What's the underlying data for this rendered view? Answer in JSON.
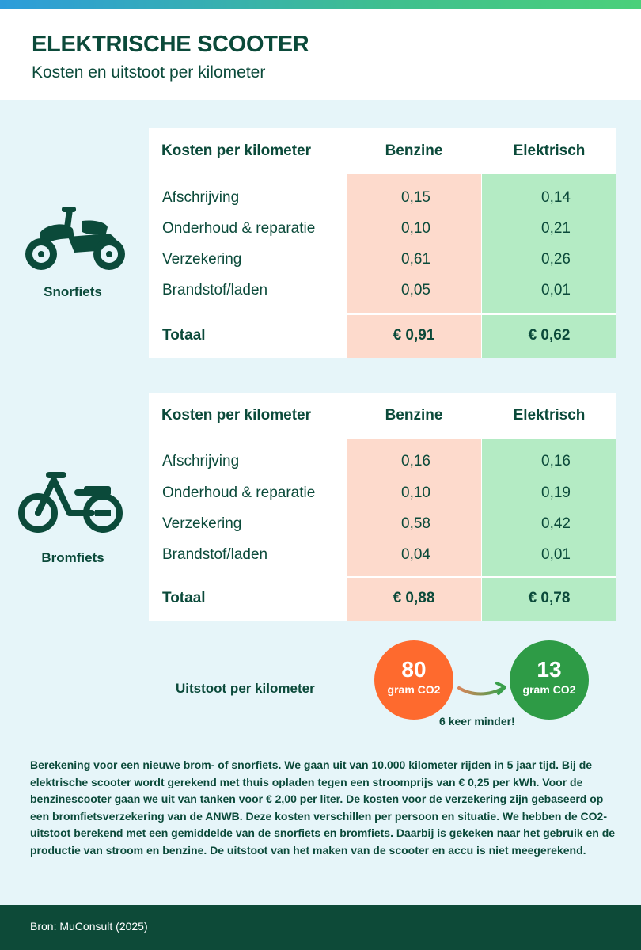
{
  "header": {
    "title": "ELEKTRISCHE SCOOTER",
    "subtitle": "Kosten en uitstoot per kilometer"
  },
  "colors": {
    "dark_green": "#0b4a3a",
    "benzine_bg": "#fddacc",
    "elektrisch_bg": "#b4ebc4",
    "orange": "#fe6a2e",
    "green": "#2e9b46",
    "page_bg": "#e6f5f9"
  },
  "tables": [
    {
      "vehicle": "Snorfiets",
      "icon": "scooter-icon",
      "header": {
        "label": "Kosten per kilometer",
        "benzine": "Benzine",
        "elektrisch": "Elektrisch"
      },
      "rows": [
        {
          "label": "Afschrijving",
          "benzine": "0,15",
          "elektrisch": "0,14"
        },
        {
          "label": "Onderhoud & reparatie",
          "benzine": "0,10",
          "elektrisch": "0,21"
        },
        {
          "label": "Verzekering",
          "benzine": "0,61",
          "elektrisch": "0,26"
        },
        {
          "label": "Brandstof/laden",
          "benzine": "0,05",
          "elektrisch": "0,01"
        }
      ],
      "total": {
        "label": "Totaal",
        "benzine": "€ 0,91",
        "elektrisch": "€ 0,62"
      }
    },
    {
      "vehicle": "Bromfiets",
      "icon": "moped-icon",
      "header": {
        "label": "Kosten per kilometer",
        "benzine": "Benzine",
        "elektrisch": "Elektrisch"
      },
      "rows": [
        {
          "label": "Afschrijving",
          "benzine": "0,16",
          "elektrisch": "0,16"
        },
        {
          "label": "Onderhoud & reparatie",
          "benzine": "0,10",
          "elektrisch": "0,19"
        },
        {
          "label": "Verzekering",
          "benzine": "0,58",
          "elektrisch": "0,42"
        },
        {
          "label": "Brandstof/laden",
          "benzine": "0,04",
          "elektrisch": "0,01"
        }
      ],
      "total": {
        "label": "Totaal",
        "benzine": "€ 0,88",
        "elektrisch": "€ 0,78"
      }
    }
  ],
  "emissions": {
    "label": "Uitstoot per kilometer",
    "benzine_value": "80",
    "benzine_unit": "gram CO2",
    "elektrisch_value": "13",
    "elektrisch_unit": "gram CO2",
    "comparison": "6 keer minder!"
  },
  "note": "Berekening voor een nieuwe brom- of snorfiets. We gaan uit van 10.000 kilometer rijden in 5 jaar tijd. Bij de elektrische scooter wordt gerekend met thuis opladen tegen een stroomprijs van € 0,25 per kWh. Voor de benzinescooter gaan we uit van tanken voor € 2,00 per liter. De kosten voor de verzekering zijn gebaseerd op een bromfietsverzekering van de ANWB. Deze kosten verschillen per persoon en situatie. We hebben de CO2-uitstoot berekend met een gemiddelde van de snorfiets en bromfiets. Daarbij is gekeken naar het gebruik en de productie van stroom en benzine. De uitstoot van het maken van de scooter en accu is niet meegerekend.",
  "footer": {
    "source": "Bron: MuConsult (2025)"
  }
}
